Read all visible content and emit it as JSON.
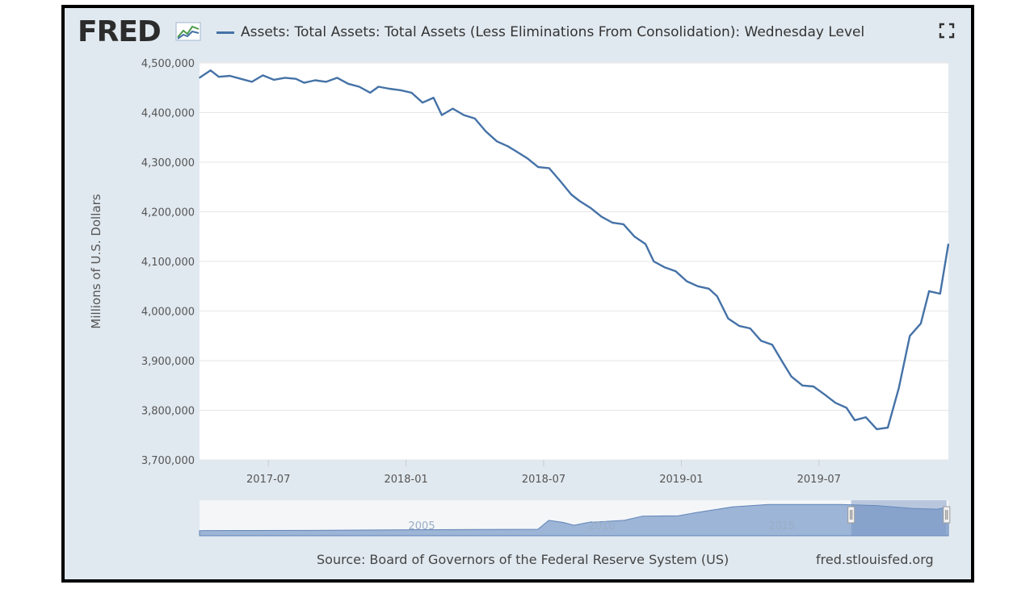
{
  "header": {
    "logo_text": "FRED",
    "legend_label": "Assets: Total Assets: Total Assets (Less Eliminations From Consolidation): Wednesday Level"
  },
  "colors": {
    "series": "#4572a7",
    "frame_bg": "#e1e9f0",
    "plot_bg": "#ffffff",
    "grid": "#e6e6e6",
    "navigator_fill": "#8aa6cc",
    "navigator_selected": "#6e8fbf"
  },
  "footer": {
    "source": "Source: Board of Governors of the Federal Reserve System (US)",
    "site": "fred.stlouisfed.org"
  },
  "navigator": {
    "labels": [
      "2005",
      "2010",
      "2015"
    ],
    "label_years": [
      2005,
      2010,
      2015
    ],
    "range_years": [
      1999.2,
      2020.0
    ],
    "selected_years": [
      2017.3,
      2019.95
    ],
    "profile": [
      [
        1999.2,
        0.72
      ],
      [
        2002,
        0.76
      ],
      [
        2005,
        0.85
      ],
      [
        2007,
        0.9
      ],
      [
        2008.6,
        0.92
      ],
      [
        2008.9,
        2.2
      ],
      [
        2009.3,
        1.9
      ],
      [
        2009.6,
        1.5
      ],
      [
        2010,
        1.9
      ],
      [
        2011,
        2.2
      ],
      [
        2011.5,
        2.8
      ],
      [
        2012.5,
        2.85
      ],
      [
        2013,
        3.3
      ],
      [
        2014,
        4.1
      ],
      [
        2015,
        4.45
      ],
      [
        2016,
        4.45
      ],
      [
        2017,
        4.45
      ],
      [
        2018,
        4.3
      ],
      [
        2019,
        3.9
      ],
      [
        2019.7,
        3.78
      ],
      [
        2020.0,
        4.13
      ]
    ]
  },
  "chart_data": {
    "type": "line",
    "title": "Assets: Total Assets: Total Assets (Less Eliminations From Consolidation): Wednesday Level",
    "xlabel": "",
    "ylabel": "Millions of U.S. Dollars",
    "ylim": [
      3700000,
      4500000
    ],
    "yticks": [
      3700000,
      3800000,
      3900000,
      4000000,
      4100000,
      4200000,
      4300000,
      4400000,
      4500000
    ],
    "ytick_labels": [
      "3,700,000",
      "3,800,000",
      "3,900,000",
      "4,000,000",
      "4,100,000",
      "4,200,000",
      "4,300,000",
      "4,400,000",
      "4,500,000"
    ],
    "xlim_months": [
      2017.25,
      2019.97
    ],
    "xticks": [
      2017.5,
      2018.0,
      2018.5,
      2019.0,
      2019.5
    ],
    "xtick_labels": [
      "2017-07",
      "2018-01",
      "2018-07",
      "2019-01",
      "2019-07"
    ],
    "grid": true,
    "legend": "top-left",
    "series": [
      {
        "name": "Assets: Total Assets: Total Assets (Less Eliminations From Consolidation): Wednesday Level",
        "x": [
          2017.25,
          2017.29,
          2017.32,
          2017.36,
          2017.4,
          2017.44,
          2017.48,
          2017.52,
          2017.56,
          2017.6,
          2017.63,
          2017.67,
          2017.71,
          2017.75,
          2017.79,
          2017.83,
          2017.87,
          2017.9,
          2017.94,
          2017.98,
          2018.02,
          2018.06,
          2018.1,
          2018.13,
          2018.17,
          2018.21,
          2018.25,
          2018.29,
          2018.33,
          2018.37,
          2018.4,
          2018.44,
          2018.48,
          2018.52,
          2018.56,
          2018.6,
          2018.63,
          2018.67,
          2018.71,
          2018.75,
          2018.79,
          2018.83,
          2018.87,
          2018.9,
          2018.94,
          2018.98,
          2019.02,
          2019.06,
          2019.1,
          2019.13,
          2019.17,
          2019.21,
          2019.25,
          2019.29,
          2019.33,
          2019.37,
          2019.4,
          2019.44,
          2019.48,
          2019.52,
          2019.56,
          2019.6,
          2019.63,
          2019.67,
          2019.71,
          2019.75,
          2019.79,
          2019.83,
          2019.87,
          2019.9,
          2019.94,
          2019.97
        ],
        "y": [
          4470000,
          4485000,
          4472000,
          4474000,
          4468000,
          4462000,
          4475000,
          4466000,
          4470000,
          4468000,
          4460000,
          4465000,
          4462000,
          4470000,
          4458000,
          4452000,
          4440000,
          4452000,
          4448000,
          4445000,
          4440000,
          4420000,
          4430000,
          4395000,
          4408000,
          4395000,
          4388000,
          4362000,
          4342000,
          4332000,
          4322000,
          4308000,
          4290000,
          4288000,
          4262000,
          4235000,
          4222000,
          4208000,
          4190000,
          4178000,
          4175000,
          4150000,
          4135000,
          4100000,
          4088000,
          4080000,
          4060000,
          4050000,
          4045000,
          4030000,
          3985000,
          3970000,
          3965000,
          3940000,
          3932000,
          3895000,
          3868000,
          3850000,
          3848000,
          3832000,
          3815000,
          3805000,
          3780000,
          3786000,
          3762000,
          3765000,
          3845000,
          3950000,
          3975000,
          4040000,
          4035000,
          4135000
        ]
      }
    ]
  }
}
